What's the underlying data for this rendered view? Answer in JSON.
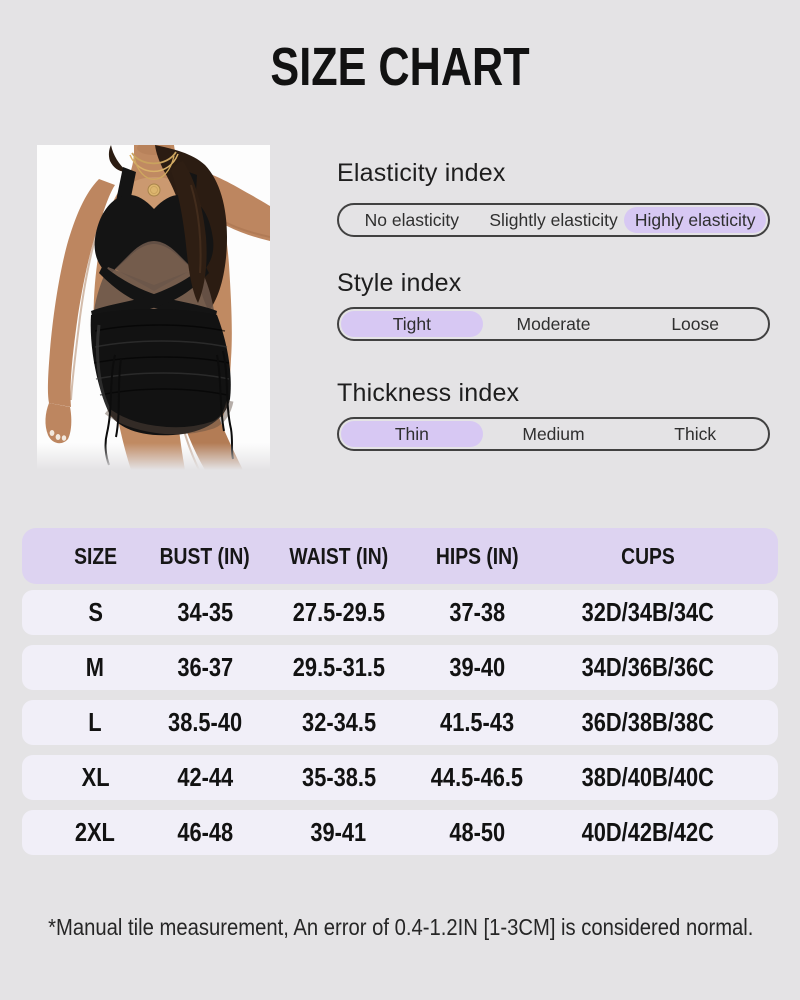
{
  "page": {
    "title": "SIZE CHART",
    "footnote": "*Manual tile measurement, An error of 0.4-1.2IN [1-3CM] is considered normal."
  },
  "product_image": {
    "description": "Model wearing a black crossover mesh-panel ruched swim dress with gold layered necklaces"
  },
  "indices": [
    {
      "title": "Elasticity index",
      "options": [
        "No elasticity",
        "Slightly elasticity",
        "Highly elasticity"
      ],
      "selected": 2
    },
    {
      "title": "Style index",
      "options": [
        "Tight",
        "Moderate",
        "Loose"
      ],
      "selected": 0
    },
    {
      "title": "Thickness index",
      "options": [
        "Thin",
        "Medium",
        "Thick"
      ],
      "selected": 0
    }
  ],
  "size_table": {
    "columns": [
      "SIZE",
      "BUST (IN)",
      "WAIST (IN)",
      "HIPS (IN)",
      "CUPS"
    ],
    "rows": [
      [
        "S",
        "34-35",
        "27.5-29.5",
        "37-38",
        "32D/34B/34C"
      ],
      [
        "M",
        "36-37",
        "29.5-31.5",
        "39-40",
        "34D/36B/36C"
      ],
      [
        "L",
        "38.5-40",
        "32-34.5",
        "41.5-43",
        "36D/38B/38C"
      ],
      [
        "XL",
        "42-44",
        "35-38.5",
        "44.5-46.5",
        "38D/40B/40C"
      ],
      [
        "2XL",
        "46-48",
        "39-41",
        "48-50",
        "40D/42B/42C"
      ]
    ]
  },
  "colors": {
    "page_bg": "#e4e3e5",
    "highlight_purple": "#d7c8f3",
    "header_purple": "#ddd3f1",
    "row_bg": "#f1eff8",
    "bar_border": "#414141",
    "text": "#1b1b1b"
  }
}
